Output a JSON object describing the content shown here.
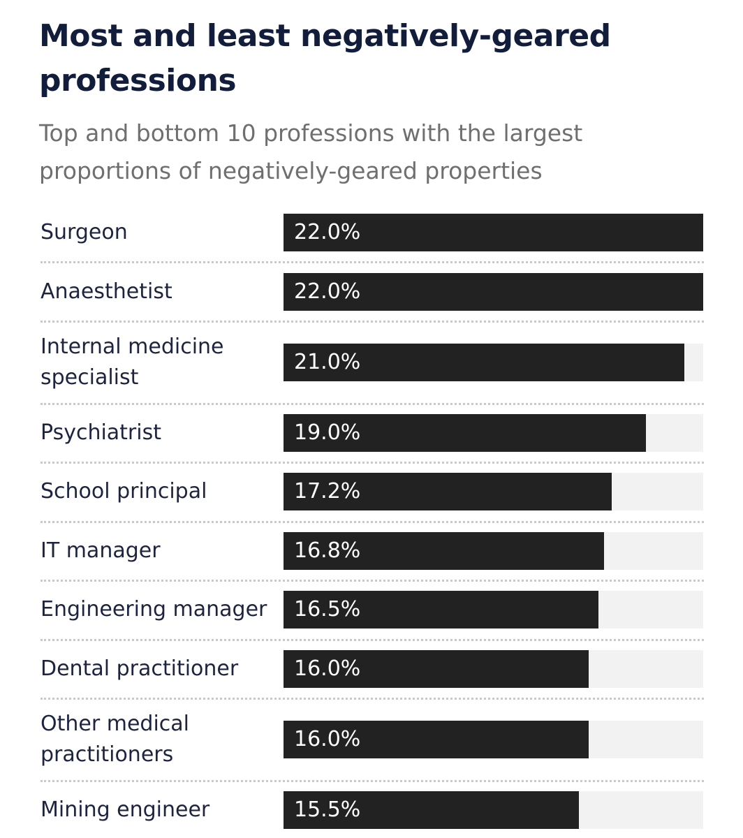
{
  "header": {
    "title": "Most and least negatively-geared professions",
    "subtitle": "Top and bottom 10 professions with the largest proportions of negatively-geared properties"
  },
  "colors": {
    "title": "#121d3c",
    "subtitle": "#6f6f6f",
    "bar": "#222222",
    "track": "#f2f2f2",
    "divider": "#c9c9c9"
  },
  "chart_data": {
    "type": "bar",
    "orientation": "horizontal",
    "title": "Most and least negatively-geared professions",
    "subtitle": "Top and bottom 10 professions with the largest proportions of negatively-geared properties",
    "xlim": [
      0,
      22
    ],
    "unit": "%",
    "categories": [
      "Surgeon",
      "Anaesthetist",
      "Internal medicine specialist",
      "Psychiatrist",
      "School principal",
      "IT manager",
      "Engineering manager",
      "Dental practitioner",
      "Other medical practitioners",
      "Mining engineer"
    ],
    "values": [
      22.0,
      22.0,
      21.0,
      19.0,
      17.2,
      16.8,
      16.5,
      16.0,
      16.0,
      15.5
    ],
    "data_labels": [
      "22.0%",
      "22.0%",
      "21.0%",
      "19.0%",
      "17.2%",
      "16.8%",
      "16.5%",
      "16.0%",
      "16.0%",
      "15.5%"
    ]
  }
}
